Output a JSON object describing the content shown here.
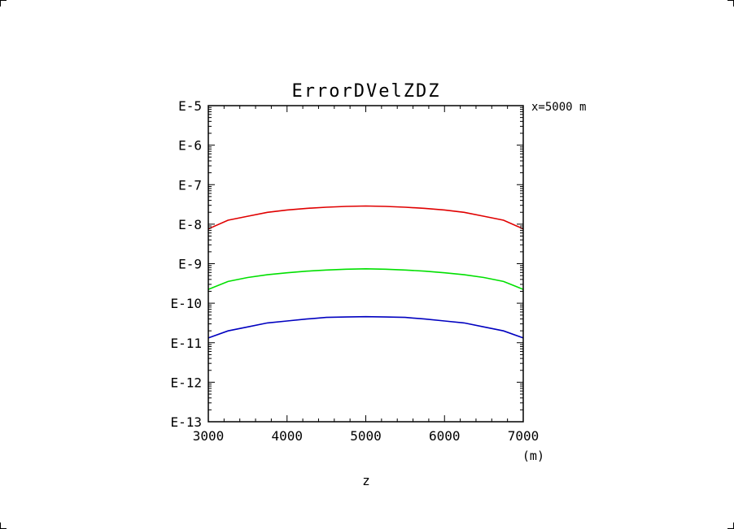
{
  "chart_data": {
    "type": "line",
    "title": "ErrorDVelZDZ",
    "annotation": "x=5000 m",
    "xlabel": "z",
    "xunit": "(m)",
    "ylabel": "",
    "xlim": [
      3000,
      7000
    ],
    "ylim": [
      -13,
      -5
    ],
    "yscale": "log",
    "grid": false,
    "x_ticks": [
      3000,
      4000,
      5000,
      6000,
      7000
    ],
    "x_tick_labels": [
      "3000",
      "4000",
      "5000",
      "6000",
      "7000"
    ],
    "y_ticks": [
      -5,
      -6,
      -7,
      -8,
      -9,
      -10,
      -11,
      -12,
      -13
    ],
    "y_tick_labels": [
      "E-5",
      "E-6",
      "E-7",
      "E-8",
      "E-9",
      "E-10",
      "E-11",
      "E-12",
      "E-13"
    ],
    "series": [
      {
        "color": "#e00000",
        "x": [
          3000,
          3250,
          3500,
          3750,
          4000,
          4250,
          4500,
          4750,
          5000,
          5250,
          5500,
          5750,
          6000,
          6250,
          6500,
          6750,
          7000
        ],
        "y": [
          -8.12,
          -7.9,
          -7.8,
          -7.7,
          -7.64,
          -7.6,
          -7.57,
          -7.55,
          -7.54,
          -7.55,
          -7.57,
          -7.6,
          -7.64,
          -7.7,
          -7.8,
          -7.9,
          -8.12
        ]
      },
      {
        "color": "#00e000",
        "x": [
          3000,
          3250,
          3500,
          3750,
          4000,
          4250,
          4500,
          4750,
          5000,
          5250,
          5500,
          5750,
          6000,
          6250,
          6500,
          6750,
          7000
        ],
        "y": [
          -9.65,
          -9.45,
          -9.35,
          -9.28,
          -9.23,
          -9.19,
          -9.16,
          -9.14,
          -9.13,
          -9.14,
          -9.16,
          -9.19,
          -9.23,
          -9.28,
          -9.35,
          -9.45,
          -9.65
        ]
      },
      {
        "color": "#0000c0",
        "x": [
          3000,
          3250,
          3500,
          3750,
          4000,
          4250,
          4500,
          4750,
          5000,
          5250,
          5500,
          5750,
          6000,
          6250,
          6500,
          6750,
          7000
        ],
        "y": [
          -10.88,
          -10.7,
          -10.6,
          -10.5,
          -10.45,
          -10.4,
          -10.36,
          -10.35,
          -10.34,
          -10.35,
          -10.36,
          -10.4,
          -10.45,
          -10.5,
          -10.6,
          -10.7,
          -10.88
        ]
      }
    ]
  }
}
